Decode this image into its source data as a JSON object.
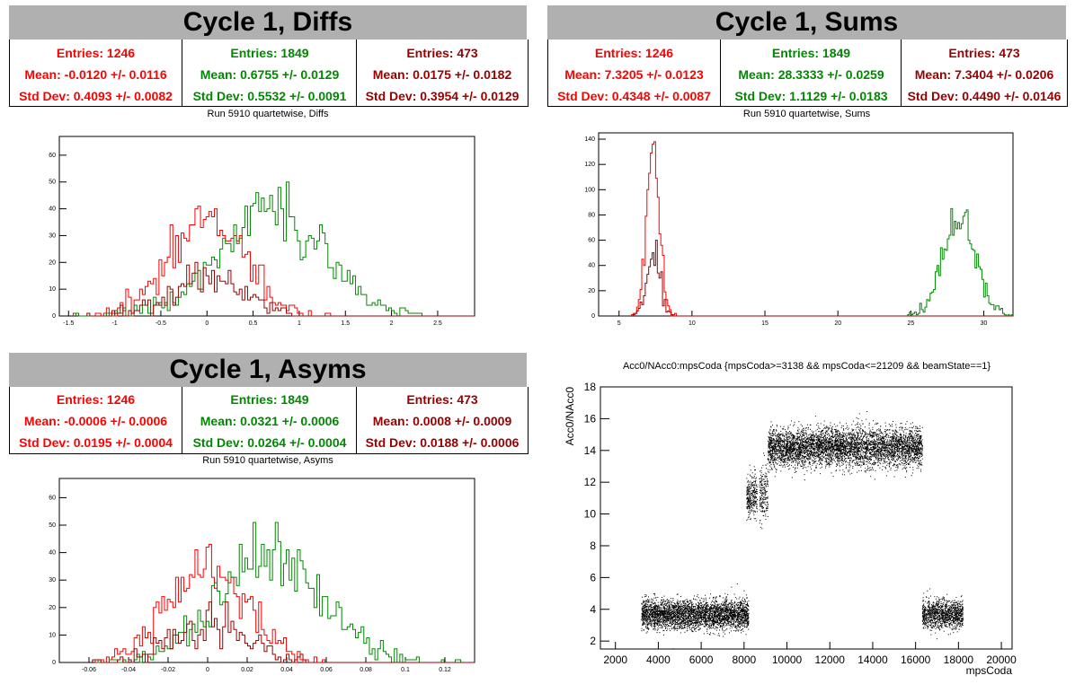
{
  "colors": {
    "c0": "#ff0000",
    "c1": "#008800",
    "c2": "#990000"
  },
  "panels": {
    "diffs": {
      "title": "Cycle 1, Diffs",
      "subtitle": "Run 5910 quartetwise, Diffs",
      "stats": [
        {
          "entries": "Entries: 1246",
          "mean": "Mean: -0.0120 +/- 0.0116",
          "std": "Std Dev: 0.4093 +/- 0.0082"
        },
        {
          "entries": "Entries: 1849",
          "mean": "Mean: 0.6755 +/- 0.0129",
          "std": "Std Dev: 0.5532 +/- 0.0091"
        },
        {
          "entries": "Entries: 473",
          "mean": "Mean: 0.0175 +/- 0.0182",
          "std": "Std Dev: 0.3954 +/- 0.0129"
        }
      ]
    },
    "sums": {
      "title": "Cycle 1, Sums",
      "subtitle": "Run 5910 quartetwise, Sums",
      "stats": [
        {
          "entries": "Entries: 1246",
          "mean": "Mean: 7.3205 +/- 0.0123",
          "std": "Std Dev: 0.4348 +/- 0.0087"
        },
        {
          "entries": "Entries: 1849",
          "mean": "Mean: 28.3333 +/- 0.0259",
          "std": "Std Dev: 1.1129 +/- 0.0183"
        },
        {
          "entries": "Entries: 473",
          "mean": "Mean: 7.3404 +/- 0.0206",
          "std": "Std Dev: 0.4490 +/- 0.0146"
        }
      ]
    },
    "asyms": {
      "title": "Cycle 1, Asyms",
      "subtitle": "Run 5910 quartetwise, Asyms",
      "stats": [
        {
          "entries": "Entries: 1246",
          "mean": "Mean: -0.0006 +/- 0.0006",
          "std": "Std Dev: 0.0195 +/- 0.0004"
        },
        {
          "entries": "Entries: 1849",
          "mean": "Mean: 0.0321 +/- 0.0006",
          "std": "Std Dev: 0.0264 +/- 0.0004"
        },
        {
          "entries": "Entries: 473",
          "mean": "Mean: 0.0008 +/- 0.0009",
          "std": "Std Dev: 0.0188 +/- 0.0006"
        }
      ]
    },
    "scatter": {
      "title": "Acc0/NAcc0:mpsCoda {mpsCoda>=3138 && mpsCoda<=21209 && beamState==1}",
      "xlabel": "mpsCoda",
      "ylabel": "Acc0/NAcc0"
    }
  },
  "chart_data": [
    {
      "type": "histogram",
      "name": "diffs",
      "xlim": [
        -1.6,
        2.9
      ],
      "ylim": [
        0,
        67
      ],
      "xticks": [
        -1.5,
        -1,
        -0.5,
        0,
        0.5,
        1,
        1.5,
        2,
        2.5
      ],
      "xtick_labels": [
        "-1.5",
        "-1",
        "-0.5",
        "0",
        "0.5",
        "1",
        "1.5",
        "2",
        "2.5"
      ],
      "yticks": [
        0,
        10,
        20,
        30,
        40,
        50,
        60
      ],
      "series": [
        {
          "color": "#ff0000",
          "entries": 1246,
          "mean": -0.012,
          "std": 0.4093
        },
        {
          "color": "#008800",
          "entries": 1849,
          "mean": 0.6755,
          "std": 0.5532
        },
        {
          "color": "#990000",
          "entries": 473,
          "mean": 0.0175,
          "std": 0.3954
        }
      ]
    },
    {
      "type": "histogram",
      "name": "sums",
      "xlim": [
        3.6,
        32
      ],
      "ylim": [
        0,
        145
      ],
      "xticks": [
        5,
        10,
        15,
        20,
        25,
        30
      ],
      "xtick_labels": [
        "5",
        "10",
        "15",
        "20",
        "25",
        "30"
      ],
      "yticks": [
        0,
        20,
        40,
        60,
        80,
        100,
        120,
        140
      ],
      "series": [
        {
          "color": "#ff0000",
          "entries": 1246,
          "mean": 7.3205,
          "std": 0.4348
        },
        {
          "color": "#008800",
          "entries": 1849,
          "mean": 28.3333,
          "std": 1.1129
        },
        {
          "color": "#990000",
          "entries": 473,
          "mean": 7.3404,
          "std": 0.449
        }
      ]
    },
    {
      "type": "histogram",
      "name": "asyms",
      "xlim": [
        -0.075,
        0.135
      ],
      "ylim": [
        0,
        67
      ],
      "xticks": [
        -0.06,
        -0.04,
        -0.02,
        0,
        0.02,
        0.04,
        0.06,
        0.08,
        0.1,
        0.12
      ],
      "xtick_labels": [
        "-0.06",
        "-0.04",
        "-0.02",
        "0",
        "0.02",
        "0.04",
        "0.06",
        "0.08",
        "0.1",
        "0.12"
      ],
      "yticks": [
        0,
        10,
        20,
        30,
        40,
        50,
        60
      ],
      "series": [
        {
          "color": "#ff0000",
          "entries": 1246,
          "mean": -0.0006,
          "std": 0.0195
        },
        {
          "color": "#008800",
          "entries": 1849,
          "mean": 0.0321,
          "std": 0.0264
        },
        {
          "color": "#990000",
          "entries": 473,
          "mean": 0.0008,
          "std": 0.0188
        }
      ]
    },
    {
      "type": "scatter",
      "name": "scatter",
      "title": "Acc0/NAcc0:mpsCoda {mpsCoda>=3138 && mpsCoda<=21209 && beamState==1}",
      "xlabel": "mpsCoda",
      "ylabel": "Acc0/NAcc0",
      "xlim": [
        1300,
        20500
      ],
      "ylim": [
        1.5,
        18
      ],
      "xticks": [
        2000,
        4000,
        6000,
        8000,
        10000,
        12000,
        14000,
        16000,
        18000,
        20000
      ],
      "yticks": [
        2,
        4,
        6,
        8,
        10,
        12,
        14,
        16,
        18
      ],
      "clusters": [
        {
          "x": [
            3200,
            8200
          ],
          "y_center": 3.7,
          "y_spread": 0.45,
          "n": 3500
        },
        {
          "x": [
            8100,
            8600
          ],
          "y_center": 11.2,
          "y_spread": 0.7,
          "n": 300
        },
        {
          "x": [
            8700,
            9100
          ],
          "y_center": 11.3,
          "y_spread": 0.8,
          "n": 200
        },
        {
          "x": [
            9100,
            16300
          ],
          "y_center": 14.2,
          "y_spread": 0.6,
          "n": 5000
        },
        {
          "x": [
            16300,
            18200
          ],
          "y_center": 3.7,
          "y_spread": 0.45,
          "n": 1200
        }
      ]
    }
  ]
}
